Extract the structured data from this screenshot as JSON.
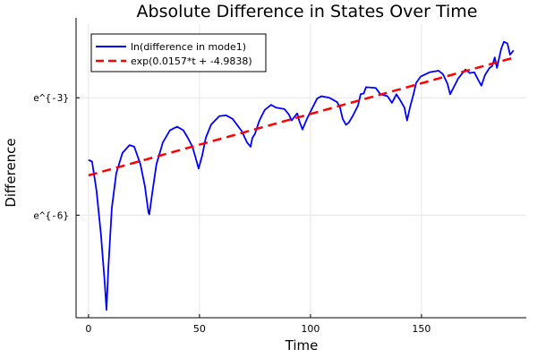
{
  "chart_data": {
    "type": "line",
    "title": "Absolute Difference in States Over Time",
    "xlabel": "Time",
    "ylabel": "Difference",
    "xlim": [
      -5.6,
      197.2
    ],
    "ylim": [
      -8.62,
      -1.12
    ],
    "y_scale": "log (natural), values shown as ln",
    "x_ticks": [
      0,
      50,
      100,
      150
    ],
    "x_tick_labels": [
      "0",
      "50",
      "100",
      "150"
    ],
    "y_ticks": [
      -6,
      -3
    ],
    "y_tick_labels": [
      "e^{-6}",
      "e^{-3}"
    ],
    "grid": true,
    "legend_position": "top-left",
    "series": [
      {
        "name": "ln(difference in mode1)",
        "color": "#0000ff",
        "style": "solid",
        "x": [
          0,
          1.6,
          3.6,
          5.6,
          7.3,
          8.1,
          8.9,
          10.5,
          12.5,
          15.3,
          18.5,
          20.6,
          23.4,
          25.4,
          27,
          27.4,
          28.6,
          30.6,
          33.5,
          36.7,
          39.9,
          42.7,
          44.8,
          46.8,
          48,
          49.6,
          51.2,
          52.8,
          55.2,
          58.9,
          62,
          64.9,
          66.9,
          69,
          71.4,
          73,
          73.8,
          75,
          77,
          79.4,
          82.3,
          84.3,
          88.3,
          90.3,
          91.5,
          94,
          95,
          96.4,
          98.4,
          100.4,
          103,
          105,
          108.5,
          112,
          113.3,
          114.5,
          116,
          117.3,
          119,
          121.4,
          122.6,
          124,
          125,
          129.4,
          131.5,
          134.7,
          136.7,
          138.7,
          140.7,
          142.3,
          143.5,
          144.8,
          146.4,
          147.6,
          149.6,
          153.6,
          157.7,
          159.7,
          161.7,
          162.9,
          164.9,
          166.5,
          169.8,
          171.8,
          173.8,
          175.8,
          177,
          178.6,
          180.6,
          181.9,
          183,
          184,
          185.9,
          187.1,
          188.7,
          189.9,
          191.5
        ],
        "y": [
          -4.59,
          -4.63,
          -5.37,
          -6.49,
          -7.72,
          -8.42,
          -7.39,
          -5.82,
          -4.93,
          -4.41,
          -4.21,
          -4.25,
          -4.7,
          -5.26,
          -5.93,
          -5.98,
          -5.48,
          -4.7,
          -4.14,
          -3.83,
          -3.74,
          -3.83,
          -4.03,
          -4.25,
          -4.48,
          -4.81,
          -4.48,
          -4.03,
          -3.69,
          -3.47,
          -3.45,
          -3.54,
          -3.69,
          -3.85,
          -4.14,
          -4.25,
          -4.03,
          -3.92,
          -3.58,
          -3.31,
          -3.18,
          -3.25,
          -3.29,
          -3.43,
          -3.58,
          -3.4,
          -3.6,
          -3.81,
          -3.54,
          -3.31,
          -3.02,
          -2.96,
          -3.0,
          -3.11,
          -3.25,
          -3.54,
          -3.69,
          -3.63,
          -3.47,
          -3.2,
          -2.91,
          -2.89,
          -2.73,
          -2.75,
          -2.91,
          -2.96,
          -3.13,
          -2.91,
          -3.09,
          -3.25,
          -3.58,
          -3.25,
          -2.91,
          -2.62,
          -2.46,
          -2.35,
          -2.31,
          -2.4,
          -2.64,
          -2.91,
          -2.69,
          -2.51,
          -2.28,
          -2.37,
          -2.35,
          -2.57,
          -2.69,
          -2.42,
          -2.24,
          -2.19,
          -1.97,
          -2.24,
          -1.75,
          -1.57,
          -1.61,
          -1.9,
          -1.79
        ]
      },
      {
        "name": "exp(0.0157*t + -4.9838)",
        "color": "#ff0000",
        "style": "dashed",
        "slope": 0.0157,
        "intercept": -4.9838,
        "x_range": [
          0,
          191.5
        ]
      }
    ]
  }
}
